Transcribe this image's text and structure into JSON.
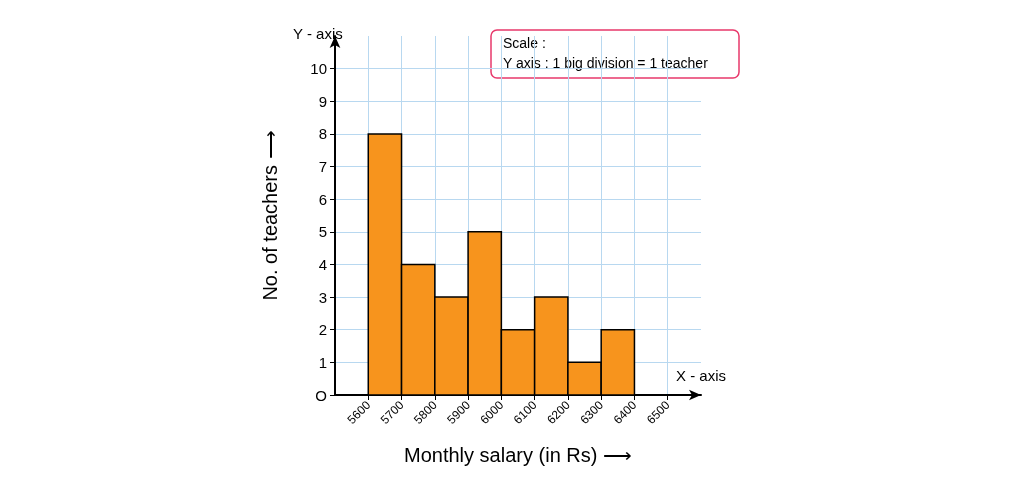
{
  "chart_data": {
    "type": "histogram",
    "title": null,
    "xlabel": "Monthly salary (in Rs) ⟶",
    "ylabel": "No. of teachers ⟶",
    "annotations": [
      "Y - axis",
      "X - axis",
      "Scale :",
      "Y axis : 1 big division = 1 teacher"
    ],
    "bins": [
      5600,
      5700,
      5800,
      5900,
      6000,
      6100,
      6200,
      6300,
      6400
    ],
    "values": [
      8,
      4,
      3,
      5,
      2,
      3,
      1,
      2
    ],
    "color": "#f7941d",
    "xlim": [
      5500,
      6600
    ],
    "xticks": [
      5600,
      5700,
      5800,
      5900,
      6000,
      6100,
      6200,
      6300,
      6400,
      6500
    ],
    "ylim": [
      0,
      11
    ],
    "yticks": [
      {
        "value": 0,
        "label": "O"
      },
      1,
      2,
      3,
      4,
      5,
      6,
      7,
      8,
      9,
      10
    ],
    "grid": true
  }
}
